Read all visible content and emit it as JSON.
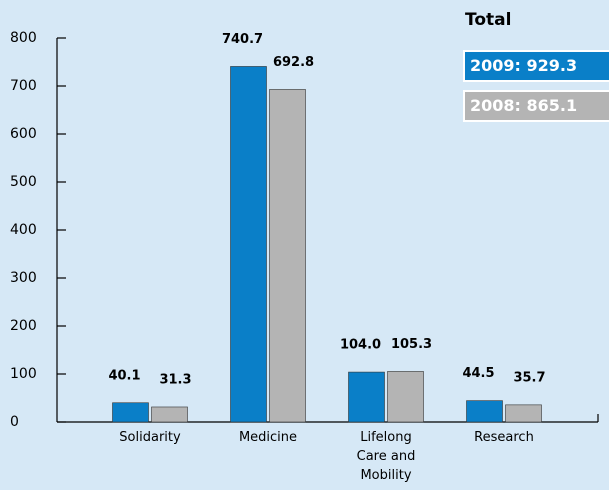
{
  "chart_data": {
    "type": "bar",
    "legend_title": "Total",
    "categories": [
      "Solidarity",
      "Medicine",
      "Lifelong Care and Mobility",
      "Research"
    ],
    "series": [
      {
        "name": "2009: 929.3",
        "color": "#0a7fc8",
        "values": [
          40.1,
          740.7,
          104.0,
          44.5
        ],
        "value_labels": [
          "40.1",
          "740.7",
          "104.0",
          "44.5"
        ]
      },
      {
        "name": "2008: 865.1",
        "color": "#b4b4b4",
        "values": [
          31.3,
          692.8,
          105.3,
          35.7
        ]
      }
    ],
    "ylim": [
      0,
      800
    ],
    "yticks": [
      0,
      100,
      200,
      300,
      400,
      500,
      600,
      700,
      800
    ],
    "legend": "top-right"
  }
}
